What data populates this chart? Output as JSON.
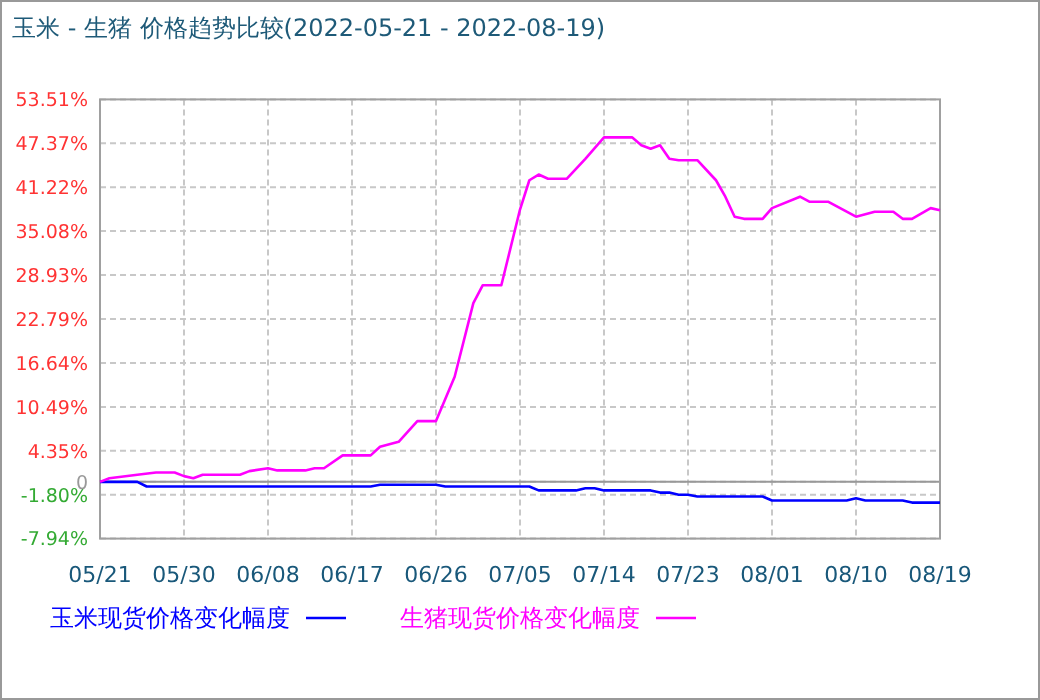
{
  "chart_data": {
    "type": "line",
    "title": "玉米 - 生猪 价格趋势比较(2022-05-21 - 2022-08-19)",
    "xlim": [
      "2022-05-21",
      "2022-08-19"
    ],
    "xticks": [
      {
        "value": "2022-05-21",
        "label": "05/21"
      },
      {
        "value": "2022-05-30",
        "label": "05/30"
      },
      {
        "value": "2022-06-08",
        "label": "06/08"
      },
      {
        "value": "2022-06-17",
        "label": "06/17"
      },
      {
        "value": "2022-06-26",
        "label": "06/26"
      },
      {
        "value": "2022-07-05",
        "label": "07/05"
      },
      {
        "value": "2022-07-14",
        "label": "07/14"
      },
      {
        "value": "2022-07-23",
        "label": "07/23"
      },
      {
        "value": "2022-08-01",
        "label": "08/01"
      },
      {
        "value": "2022-08-10",
        "label": "08/10"
      },
      {
        "value": "2022-08-19",
        "label": "08/19"
      }
    ],
    "ylim": [
      -7.94,
      53.51
    ],
    "yticks": [
      {
        "value": -7.94,
        "label": "-7.94%"
      },
      {
        "value": -1.8,
        "label": "-1.80%"
      },
      0,
      {
        "value": 4.35,
        "label": "4.35%"
      },
      {
        "value": 10.49,
        "label": "10.49%"
      },
      {
        "value": 16.64,
        "label": "16.64%"
      },
      {
        "value": 22.79,
        "label": "22.79%"
      },
      {
        "value": 28.93,
        "label": "28.93%"
      },
      {
        "value": 35.08,
        "label": "35.08%"
      },
      {
        "value": 41.22,
        "label": "41.22%"
      },
      {
        "value": 47.37,
        "label": "47.37%"
      },
      {
        "value": 53.51,
        "label": "53.51%"
      }
    ],
    "grid": true,
    "legend": "bottom",
    "ref_lines": [
      {
        "axis": "y",
        "value": 0,
        "color": "#999999"
      }
    ],
    "series": [
      {
        "name": "玉米现货价格变化幅度",
        "color": "#0000ff",
        "x": [
          "2022-05-21",
          "2022-05-25",
          "2022-05-26",
          "2022-06-19",
          "2022-06-20",
          "2022-06-26",
          "2022-06-27",
          "2022-07-06",
          "2022-07-07",
          "2022-07-11",
          "2022-07-12",
          "2022-07-13",
          "2022-07-14",
          "2022-07-19",
          "2022-07-20",
          "2022-07-21",
          "2022-07-22",
          "2022-07-23",
          "2022-07-24",
          "2022-07-31",
          "2022-08-01",
          "2022-08-09",
          "2022-08-10",
          "2022-08-11",
          "2022-08-15",
          "2022-08-16",
          "2022-08-19"
        ],
        "values": [
          0,
          0,
          -0.65,
          -0.65,
          -0.4,
          -0.4,
          -0.65,
          -0.65,
          -1.2,
          -1.2,
          -0.9,
          -0.9,
          -1.2,
          -1.2,
          -1.5,
          -1.5,
          -1.8,
          -1.8,
          -2.05,
          -2.05,
          -2.6,
          -2.6,
          -2.3,
          -2.6,
          -2.6,
          -2.9,
          -2.9
        ]
      },
      {
        "name": "生猪现货价格变化幅度",
        "color": "#ff00ff",
        "x": [
          "2022-05-21",
          "2022-05-22",
          "2022-05-25",
          "2022-05-27",
          "2022-05-29",
          "2022-05-30",
          "2022-05-31",
          "2022-06-01",
          "2022-06-05",
          "2022-06-06",
          "2022-06-08",
          "2022-06-09",
          "2022-06-12",
          "2022-06-13",
          "2022-06-14",
          "2022-06-16",
          "2022-06-19",
          "2022-06-20",
          "2022-06-22",
          "2022-06-24",
          "2022-06-26",
          "2022-06-28",
          "2022-06-30",
          "2022-07-01",
          "2022-07-03",
          "2022-07-05",
          "2022-07-06",
          "2022-07-07",
          "2022-07-08",
          "2022-07-10",
          "2022-07-12",
          "2022-07-14",
          "2022-07-17",
          "2022-07-18",
          "2022-07-19",
          "2022-07-20",
          "2022-07-21",
          "2022-07-22",
          "2022-07-24",
          "2022-07-26",
          "2022-07-27",
          "2022-07-28",
          "2022-07-29",
          "2022-07-31",
          "2022-08-01",
          "2022-08-04",
          "2022-08-05",
          "2022-08-07",
          "2022-08-10",
          "2022-08-12",
          "2022-08-14",
          "2022-08-15",
          "2022-08-16",
          "2022-08-18",
          "2022-08-19"
        ],
        "values": [
          0,
          0.5,
          1.0,
          1.3,
          1.3,
          0.8,
          0.5,
          1.0,
          1.0,
          1.5,
          1.9,
          1.6,
          1.6,
          1.9,
          1.9,
          3.7,
          3.7,
          4.9,
          5.6,
          8.5,
          8.5,
          14.7,
          25.0,
          27.5,
          27.5,
          38.1,
          42.2,
          43.0,
          42.4,
          42.4,
          45.2,
          48.2,
          48.2,
          47.1,
          46.6,
          47.1,
          45.2,
          45.0,
          45.0,
          42.2,
          39.9,
          37.1,
          36.8,
          36.8,
          38.3,
          39.9,
          39.2,
          39.2,
          37.1,
          37.8,
          37.8,
          36.8,
          36.8,
          38.3,
          38.0
        ]
      }
    ]
  }
}
